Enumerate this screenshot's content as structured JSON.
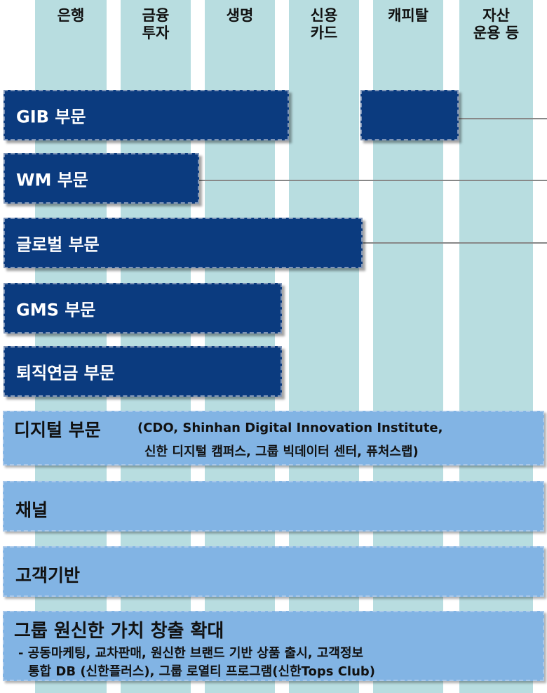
{
  "columns": [
    "은행",
    "금융\n투자",
    "생명",
    "신용\n카드",
    "캐피탈",
    "자산\n운용 등"
  ],
  "divisions": [
    "GIB 부문",
    "WM 부문",
    "글로벌 부문",
    "GMS 부문",
    "퇴직연금 부문"
  ],
  "digital": {
    "title": "디지털 부문",
    "detail": "(CDO, Shinhan Digital Innovation Institute,",
    "detail2": "신한 디지털 캠퍼스, 그룹 빅데이터 센터, 퓨처스랩)"
  },
  "channel": "채널",
  "customer": "고객기반",
  "group": {
    "title": "그룹 원신한 가치 창출 확대",
    "line1": "- 공동마케팅, 교차판매, 원신한 브랜드 기반 상품 출시, 고객정보",
    "line2": "통합 DB (신한플러스), 그룹 로열티 프로그램(신한Tops Club)"
  }
}
